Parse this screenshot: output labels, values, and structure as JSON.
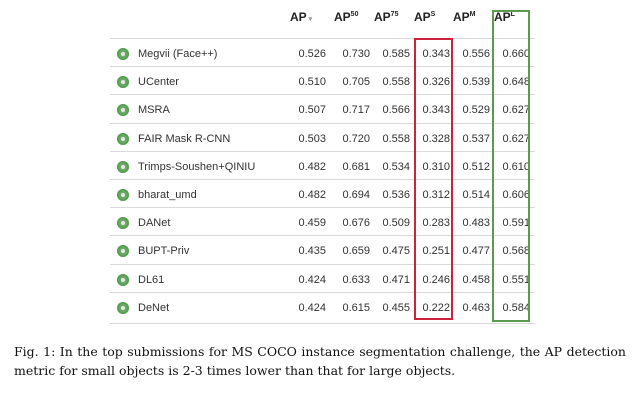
{
  "table": {
    "headers": [
      {
        "base": "AP",
        "sup": "",
        "sort_icon": "sort-desc-icon"
      },
      {
        "base": "AP",
        "sup": "50"
      },
      {
        "base": "AP",
        "sup": "75"
      },
      {
        "base": "AP",
        "sup": "S"
      },
      {
        "base": "AP",
        "sup": "M"
      },
      {
        "base": "AP",
        "sup": "L"
      }
    ],
    "rows": [
      {
        "team": "Megvii (Face++)",
        "values": [
          "0.526",
          "0.730",
          "0.585",
          "0.343",
          "0.556",
          "0.660"
        ]
      },
      {
        "team": "UCenter",
        "values": [
          "0.510",
          "0.705",
          "0.558",
          "0.326",
          "0.539",
          "0.648"
        ]
      },
      {
        "team": "MSRA",
        "values": [
          "0.507",
          "0.717",
          "0.566",
          "0.343",
          "0.529",
          "0.627"
        ]
      },
      {
        "team": "FAIR Mask R-CNN",
        "values": [
          "0.503",
          "0.720",
          "0.558",
          "0.328",
          "0.537",
          "0.627"
        ]
      },
      {
        "team": "Trimps-Soushen+QINIU",
        "values": [
          "0.482",
          "0.681",
          "0.534",
          "0.310",
          "0.512",
          "0.610"
        ]
      },
      {
        "team": "bharat_umd",
        "values": [
          "0.482",
          "0.694",
          "0.536",
          "0.312",
          "0.514",
          "0.606"
        ]
      },
      {
        "team": "DANet",
        "values": [
          "0.459",
          "0.676",
          "0.509",
          "0.283",
          "0.483",
          "0.591"
        ]
      },
      {
        "team": "BUPT-Priv",
        "values": [
          "0.435",
          "0.659",
          "0.475",
          "0.251",
          "0.477",
          "0.568"
        ]
      },
      {
        "team": "DL61",
        "values": [
          "0.424",
          "0.633",
          "0.471",
          "0.246",
          "0.458",
          "0.551"
        ]
      },
      {
        "team": "DeNet",
        "values": [
          "0.424",
          "0.615",
          "0.455",
          "0.222",
          "0.463",
          "0.584"
        ]
      }
    ],
    "highlight_colors": {
      "small": "#d0213c",
      "large": "#5e9a4e"
    },
    "bullet_icon": "green-circle-icon"
  },
  "caption": {
    "label": "Fig. 1:",
    "text": "In the top submissions for MS COCO instance segmentation challenge, the AP detection metric for small objects is 2-3 times lower than that for large objects."
  }
}
